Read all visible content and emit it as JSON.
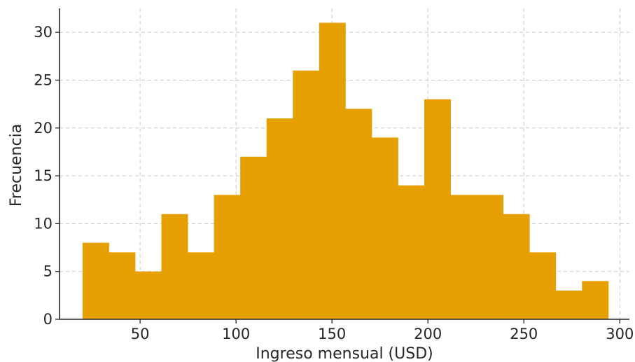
{
  "chart_data": {
    "type": "bar",
    "subtype": "histogram",
    "xlabel": "Ingreso mensual (USD)",
    "ylabel": "Frecuencia",
    "xlim": [
      8,
      305
    ],
    "ylim": [
      0,
      32.5
    ],
    "xticks": [
      50,
      100,
      150,
      200,
      250,
      300
    ],
    "yticks": [
      0,
      5,
      10,
      15,
      20,
      25,
      30
    ],
    "grid": true,
    "bar_color": "#E69F00",
    "bin_edges": [
      20,
      33.7,
      47.4,
      61.1,
      74.8,
      88.5,
      102.2,
      115.9,
      129.6,
      143.3,
      157.0,
      170.7,
      184.4,
      198.1,
      211.8,
      225.5,
      239.2,
      252.9,
      266.6,
      280.3,
      294.0
    ],
    "values": [
      8,
      7,
      5,
      11,
      7,
      13,
      17,
      21,
      26,
      31,
      22,
      19,
      14,
      23,
      13,
      13,
      11,
      7,
      3,
      4
    ]
  }
}
